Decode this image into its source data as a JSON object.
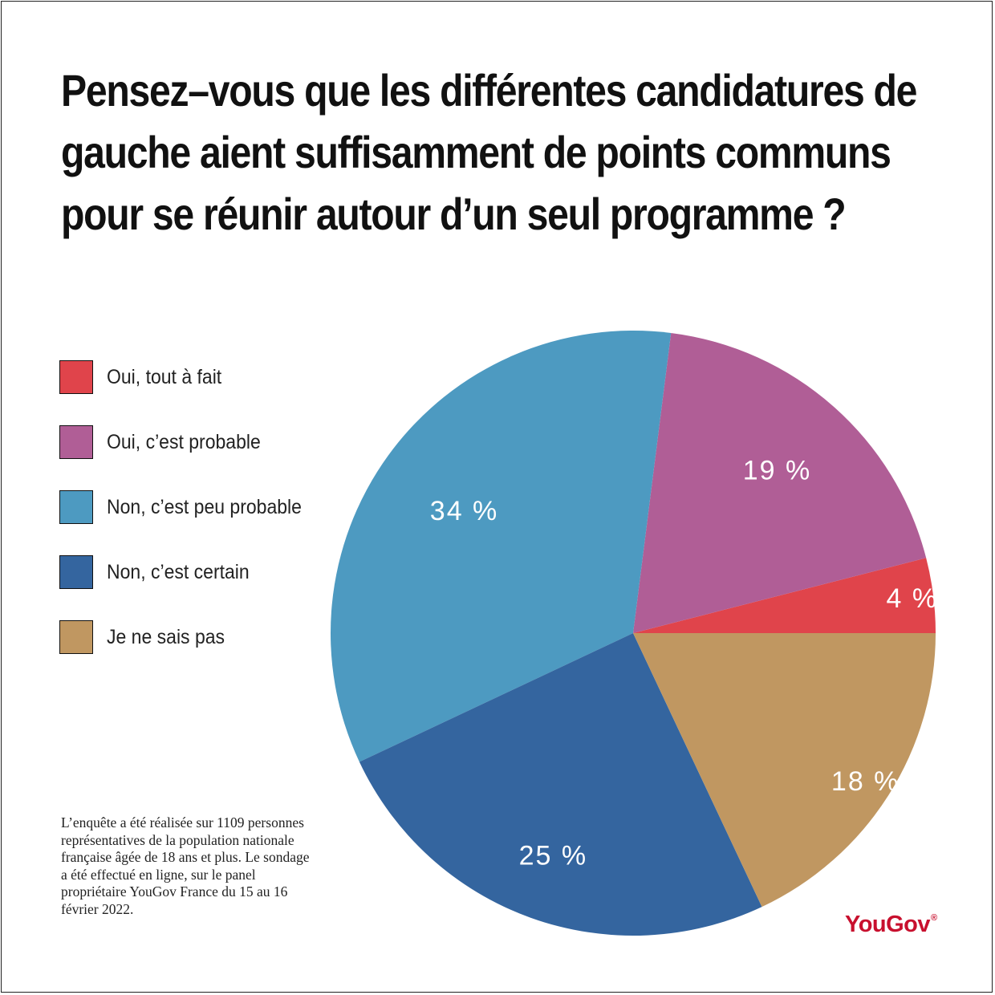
{
  "title": "Pensez–vous que les différentes candidatures de gauche aient suffisamment de points communs pour se réunir autour d’un seul programme ?",
  "chart_data": {
    "type": "pie",
    "categories": [
      "Oui, tout à fait",
      "Oui, c’est probable",
      "Non, c’est peu probable",
      "Non, c’est certain",
      "Je ne sais pas"
    ],
    "values": [
      4,
      19,
      34,
      25,
      18
    ],
    "labels": [
      "4 %",
      "19 %",
      "34 %",
      "25 %",
      "18 %"
    ],
    "colors": [
      "#e0444b",
      "#b05e96",
      "#4d9ac1",
      "#34659f",
      "#c09761"
    ],
    "legend_position": "left",
    "start": "3 o'clock",
    "direction": "counterclockwise"
  },
  "note": "L’enquête a été réalisée sur 1109 personnes représentatives de la population nationale française âgée de 18 ans et plus. Le sondage a été effectué en ligne, sur le panel propriétaire YouGov France du 15 au 16 février 2022.",
  "logo": {
    "text": "YouGov",
    "mark": "®"
  }
}
